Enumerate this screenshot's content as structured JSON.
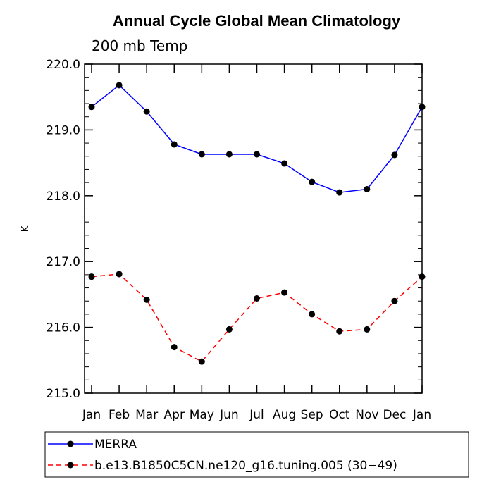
{
  "chart_data": {
    "type": "line",
    "title": "Annual Cycle Global Mean Climatology",
    "subtitle": "200 mb Temp",
    "xlabel": "",
    "ylabel": "K",
    "categories": [
      "Jan",
      "Feb",
      "Mar",
      "Apr",
      "May",
      "Jun",
      "Jul",
      "Aug",
      "Sep",
      "Oct",
      "Nov",
      "Dec",
      "Jan"
    ],
    "ylim": [
      215.0,
      220.0
    ],
    "yticks": [
      "215.0",
      "216.0",
      "217.0",
      "218.0",
      "219.0",
      "220.0"
    ],
    "grid": false,
    "legend_position": "bottom",
    "series": [
      {
        "name": "MERRA",
        "color": "#0000ff",
        "line_style": "solid",
        "values": [
          219.35,
          219.68,
          219.28,
          218.78,
          218.63,
          218.63,
          218.63,
          218.49,
          218.21,
          218.05,
          218.1,
          218.62,
          219.35
        ]
      },
      {
        "name": "b.e13.B1850C5CN.ne120_g16.tuning.005 (30−49)",
        "color": "#ff0000",
        "line_style": "dashed",
        "values": [
          216.77,
          216.81,
          216.42,
          215.7,
          215.48,
          215.97,
          216.44,
          216.53,
          216.2,
          215.94,
          215.97,
          216.4,
          216.77
        ]
      }
    ]
  }
}
